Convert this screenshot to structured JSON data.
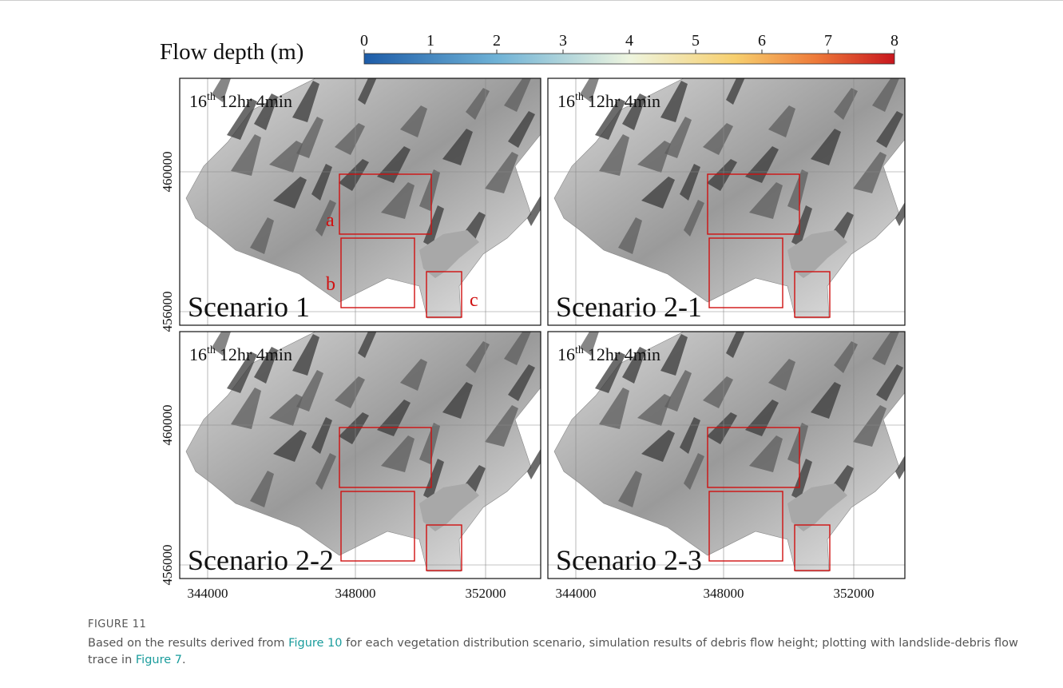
{
  "colorbar": {
    "label": "Flow depth (m)",
    "ticks": [
      0,
      1,
      2,
      3,
      4,
      5,
      6,
      7,
      8
    ]
  },
  "panels": [
    {
      "time": {
        "day": "16",
        "suffix": "th",
        "clock": "12hr 4min"
      },
      "scenario": "Scenario 1",
      "y_ticks": [
        460000,
        456000
      ],
      "box_labels": [
        "a",
        "b",
        "c"
      ]
    },
    {
      "time": {
        "day": "16",
        "suffix": "th",
        "clock": "12hr 4min"
      },
      "scenario": "Scenario 2-1"
    },
    {
      "time": {
        "day": "16",
        "suffix": "th",
        "clock": "12hr 4min"
      },
      "scenario": "Scenario 2-2",
      "y_ticks": [
        460000,
        456000
      ],
      "x_ticks": [
        344000,
        348000,
        352000
      ]
    },
    {
      "time": {
        "day": "16",
        "suffix": "th",
        "clock": "12hr 4min"
      },
      "scenario": "Scenario 2-3",
      "x_ticks": [
        344000,
        348000,
        352000
      ]
    }
  ],
  "caption": {
    "label": "FIGURE 11",
    "parts": [
      {
        "text": "Based on the results derived from "
      },
      {
        "text": "Figure 10",
        "link": true
      },
      {
        "text": " for each vegetation distribution scenario, simulation results of debris flow height; plotting with landslide-debris flow trace in "
      },
      {
        "text": "Figure 7",
        "link": true
      },
      {
        "text": "."
      }
    ]
  }
}
